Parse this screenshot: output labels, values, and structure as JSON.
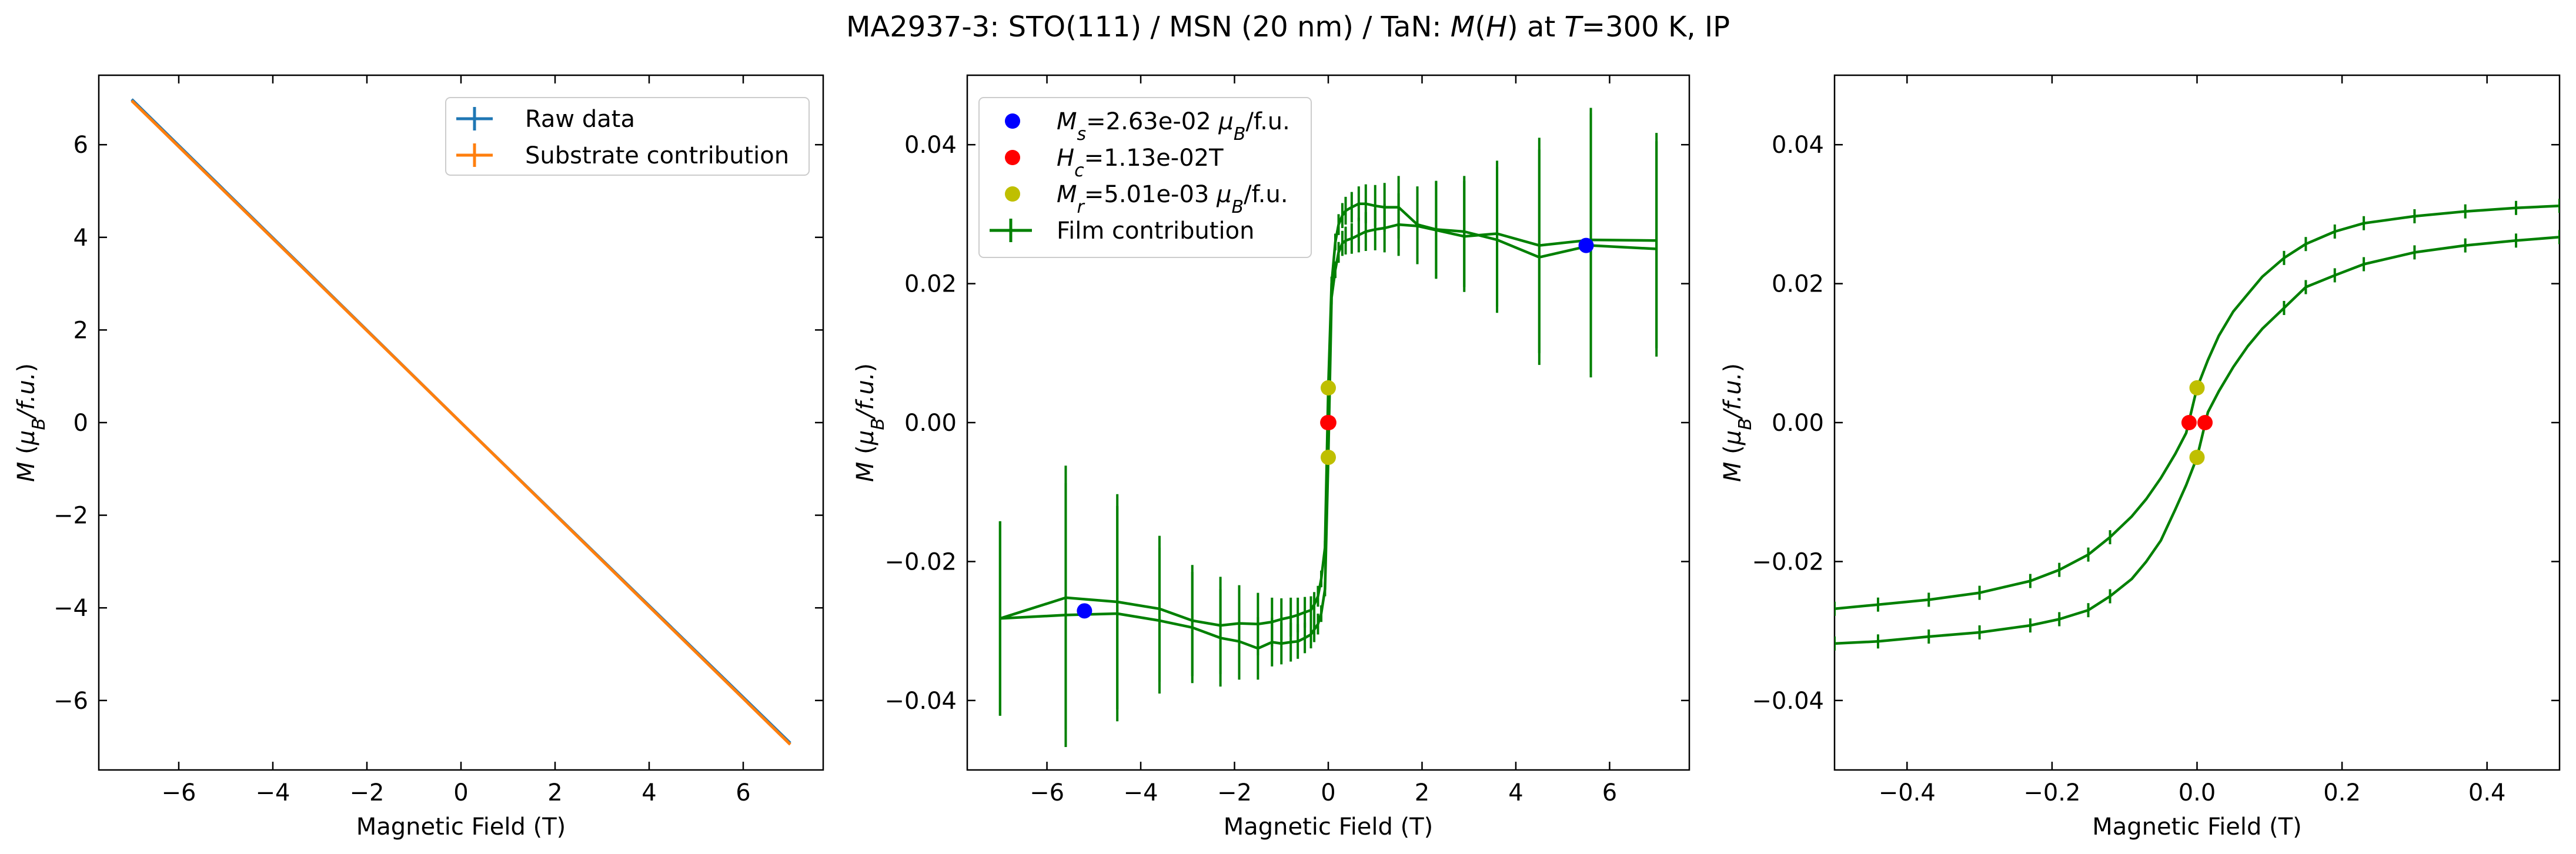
{
  "figure_title": "MA2937-3: STO(111)  / MSN (20 nm) / TaN: M(H) at T=300 K, IP",
  "colors": {
    "raw": "#1f77b4",
    "substrate": "#ff7f0e",
    "film": "#008000",
    "ms": "#0000ff",
    "hc": "#ff0000",
    "mr": "#bfbf00"
  },
  "chart_data": [
    {
      "type": "line",
      "xlabel": "Magnetic Field (T)",
      "ylabel": "M (μB/f.u.)",
      "xlim": [
        -7.7,
        7.7
      ],
      "ylim": [
        -7.5,
        7.5
      ],
      "xticks": [
        -6,
        -4,
        -2,
        0,
        2,
        4,
        6
      ],
      "yticks": [
        -6,
        -4,
        -2,
        0,
        2,
        4,
        6
      ],
      "legend_position": "upper right",
      "series": [
        {
          "name": "Raw data",
          "color": "#1f77b4",
          "x": [
            -7,
            0,
            7
          ],
          "y": [
            6.98,
            0,
            -6.92
          ]
        },
        {
          "name": "Substrate contribution",
          "color": "#ff7f0e",
          "x": [
            -7,
            7
          ],
          "y": [
            6.95,
            -6.95
          ]
        }
      ]
    },
    {
      "type": "line",
      "xlabel": "Magnetic Field (T)",
      "ylabel": "M (μB/f.u.)",
      "xlim": [
        -7.7,
        7.7
      ],
      "ylim": [
        -0.05,
        0.05
      ],
      "xticks": [
        -6,
        -4,
        -2,
        0,
        2,
        4,
        6
      ],
      "yticks": [
        -0.04,
        -0.02,
        0.0,
        0.02,
        0.04
      ],
      "legend_position": "upper left",
      "markers": [
        {
          "label": "Ms=2.63e-02 μB/f.u.",
          "color": "#0000ff",
          "points": [
            [
              -5.2,
              -0.0271
            ],
            [
              5.5,
              0.0255
            ]
          ]
        },
        {
          "label": "Hc=1.13e-02 T",
          "color": "#ff0000",
          "points": [
            [
              -0.011,
              0
            ],
            [
              0.011,
              0
            ]
          ]
        },
        {
          "label": "Mr=5.01e-03 μB/f.u.",
          "color": "#bfbf00",
          "points": [
            [
              0,
              0.005
            ],
            [
              0,
              -0.005
            ]
          ]
        }
      ],
      "series": [
        {
          "name": "Film contribution",
          "color": "#008000",
          "x": [
            -7,
            -5.6,
            -4.5,
            -3.6,
            -2.9,
            -2.3,
            -1.9,
            -1.5,
            -1.2,
            -1.0,
            -0.8,
            -0.65,
            -0.5,
            -0.37,
            -0.3,
            -0.22,
            -0.15,
            -0.07,
            0,
            0.07,
            0.15,
            0.22,
            0.3,
            0.37,
            0.5,
            0.65,
            0.8,
            1.0,
            1.2,
            1.5,
            1.9,
            2.3,
            2.9,
            3.6,
            4.5,
            5.6,
            7
          ],
          "y": [
            -0.0282,
            -0.0252,
            -0.0258,
            -0.0268,
            -0.0285,
            -0.0292,
            -0.0289,
            -0.029,
            -0.0287,
            -0.0283,
            -0.028,
            -0.0277,
            -0.0273,
            -0.027,
            -0.0262,
            -0.025,
            -0.0225,
            -0.018,
            0.005,
            0.02,
            0.026,
            0.0285,
            0.0298,
            0.0305,
            0.031,
            0.0315,
            0.0315,
            0.0312,
            0.031,
            0.031,
            0.0285,
            0.0278,
            0.0275,
            0.0263,
            0.0238,
            0.0255,
            0.025
          ],
          "y_return": [
            -0.0282,
            -0.0277,
            -0.0275,
            -0.0285,
            -0.0295,
            -0.031,
            -0.0315,
            -0.0325,
            -0.0316,
            -0.0318,
            -0.0316,
            -0.0315,
            -0.031,
            -0.0305,
            -0.0298,
            -0.029,
            -0.0275,
            -0.024,
            -0.005,
            0.018,
            0.022,
            0.0245,
            0.0258,
            0.0262,
            0.0265,
            0.027,
            0.0275,
            0.0278,
            0.028,
            0.0285,
            0.0283,
            0.0277,
            0.0268,
            0.0272,
            0.0255,
            0.0263,
            0.0262
          ],
          "yerr": [
            0.014,
            0.019,
            0.0155,
            0.0105,
            0.008,
            0.007,
            0.0055,
            0.0045,
            0.0035,
            0.003,
            0.0028,
            0.0025,
            0.0022,
            0.002,
            0.0018,
            0.0015,
            0.0012,
            0.001,
            0.0008,
            0.001,
            0.0012,
            0.0015,
            0.0018,
            0.002,
            0.0022,
            0.0025,
            0.0028,
            0.003,
            0.0035,
            0.0045,
            0.0055,
            0.007,
            0.008,
            0.0105,
            0.0155,
            0.019,
            0.0155
          ]
        }
      ]
    },
    {
      "type": "line",
      "xlabel": "Magnetic Field (T)",
      "ylabel": "M (μB/f.u.)",
      "xlim": [
        -0.5,
        0.5
      ],
      "ylim": [
        -0.05,
        0.05
      ],
      "xticks": [
        -0.4,
        -0.2,
        0.0,
        0.2,
        0.4
      ],
      "yticks": [
        -0.04,
        -0.02,
        0.0,
        0.02,
        0.04
      ],
      "markers": [
        {
          "color": "#ff0000",
          "points": [
            [
              -0.011,
              0
            ],
            [
              0.011,
              0
            ]
          ]
        },
        {
          "color": "#bfbf00",
          "points": [
            [
              0,
              0.005
            ],
            [
              0,
              -0.005
            ]
          ]
        }
      ],
      "series": [
        {
          "color": "#008000",
          "x": [
            -0.5,
            -0.44,
            -0.37,
            -0.3,
            -0.23,
            -0.19,
            -0.15,
            -0.12,
            -0.09,
            -0.07,
            -0.05,
            -0.03,
            -0.015,
            0,
            0.015,
            0.03,
            0.05,
            0.07,
            0.09,
            0.12,
            0.15,
            0.19,
            0.23,
            0.3,
            0.37,
            0.44,
            0.5
          ],
          "y_upper": [
            -0.0268,
            -0.0262,
            -0.0255,
            -0.0245,
            -0.0228,
            -0.0212,
            -0.019,
            -0.0165,
            -0.0135,
            -0.011,
            -0.008,
            -0.0045,
            -0.0015,
            0.005,
            0.009,
            0.0125,
            0.016,
            0.0185,
            0.021,
            0.0237,
            0.0257,
            0.0275,
            0.0287,
            0.0297,
            0.0304,
            0.0309,
            0.0312
          ],
          "y_lower": [
            -0.0318,
            -0.0315,
            -0.0308,
            -0.0302,
            -0.0292,
            -0.0283,
            -0.027,
            -0.025,
            -0.0225,
            -0.02,
            -0.017,
            -0.0125,
            -0.009,
            -0.005,
            0.0015,
            0.0045,
            0.008,
            0.011,
            0.0135,
            0.0165,
            0.0195,
            0.0212,
            0.0228,
            0.0245,
            0.0255,
            0.0262,
            0.0267
          ]
        }
      ]
    }
  ]
}
